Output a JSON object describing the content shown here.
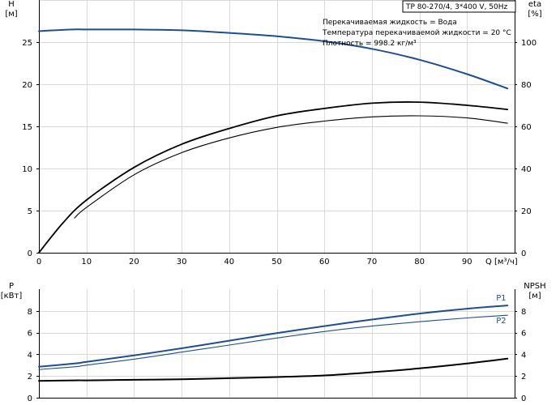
{
  "header": {
    "title": "TP 80-270/4, 3*400 V, 50Hz"
  },
  "conditions": {
    "fluid": "Перекачиваемая жидкость = Вода",
    "temperature": "Температура перекачиваемой жидкости = 20 °C",
    "density": "Плотность = 998.2 кг/м³"
  },
  "chart_data": [
    {
      "type": "line",
      "xlabel": "Q [м³/ч]",
      "ylabel": "H\n[м]",
      "y2label": "eta\n[%]",
      "xlim": [
        0,
        100
      ],
      "ylim": [
        0,
        30
      ],
      "y2lim": [
        0,
        120
      ],
      "x_ticks": [
        "0",
        "10",
        "20",
        "30",
        "40",
        "50",
        "60",
        "70",
        "80",
        "90"
      ],
      "y_ticks": [
        "0",
        "5",
        "10",
        "15",
        "20",
        "25"
      ],
      "y2_ticks": [
        "0",
        "20",
        "40",
        "60",
        "80",
        "100"
      ],
      "grid": true,
      "series": [
        {
          "axis": "left",
          "color": "#1f4e8c",
          "x": [
            0,
            7,
            10,
            20,
            30,
            40,
            50,
            60,
            70,
            80,
            90,
            98.5
          ],
          "y": [
            26.3,
            26.5,
            26.5,
            26.5,
            26.4,
            26.1,
            25.7,
            25.1,
            24.2,
            22.9,
            21.2,
            19.5
          ]
        },
        {
          "axis": "right",
          "color": "#000000",
          "x": [
            0,
            5,
            10,
            20,
            30,
            40,
            50,
            60,
            70,
            80,
            90,
            98.5
          ],
          "y": [
            0,
            14,
            25,
            40.5,
            51.5,
            59,
            65,
            68.5,
            71,
            71.5,
            70,
            68
          ]
        },
        {
          "axis": "right",
          "color": "#000000",
          "x": [
            7.5,
            10,
            20,
            30,
            40,
            50,
            60,
            70,
            80,
            90,
            98.5
          ],
          "y": [
            16.5,
            21.5,
            37,
            47.5,
            54.5,
            59.5,
            62.5,
            64.5,
            65,
            64,
            61.5
          ]
        }
      ]
    },
    {
      "type": "line",
      "ylabel": "P\n[кВт]",
      "y2label": "NPSH\n[м]",
      "xlim": [
        0,
        100
      ],
      "ylim": [
        0,
        10
      ],
      "y2lim": [
        0,
        10
      ],
      "y_ticks": [
        "0",
        "2",
        "4",
        "6",
        "8"
      ],
      "y2_ticks": [
        "0",
        "2",
        "4",
        "6",
        "8"
      ],
      "grid": true,
      "series": [
        {
          "name": "P1",
          "axis": "left",
          "color": "#1f4e8c",
          "x": [
            0,
            7.5,
            10,
            20,
            30,
            40,
            50,
            60,
            70,
            80,
            90,
            98.5
          ],
          "y": [
            2.85,
            3.15,
            3.3,
            3.9,
            4.55,
            5.25,
            5.95,
            6.6,
            7.2,
            7.75,
            8.2,
            8.5
          ]
        },
        {
          "name": "P2",
          "axis": "left",
          "color": "#1f4e8c",
          "x": [
            0,
            7.5,
            10,
            20,
            30,
            40,
            50,
            60,
            70,
            80,
            90,
            98.5
          ],
          "y": [
            2.6,
            2.85,
            3.0,
            3.55,
            4.2,
            4.85,
            5.5,
            6.1,
            6.6,
            7.0,
            7.35,
            7.6
          ]
        },
        {
          "axis": "right",
          "color": "#000000",
          "x": [
            0,
            7.5,
            10,
            20,
            30,
            40,
            50,
            60,
            70,
            80,
            90,
            98.5
          ],
          "y": [
            1.55,
            1.6,
            1.6,
            1.65,
            1.7,
            1.8,
            1.9,
            2.05,
            2.35,
            2.7,
            3.15,
            3.6
          ]
        }
      ]
    }
  ]
}
